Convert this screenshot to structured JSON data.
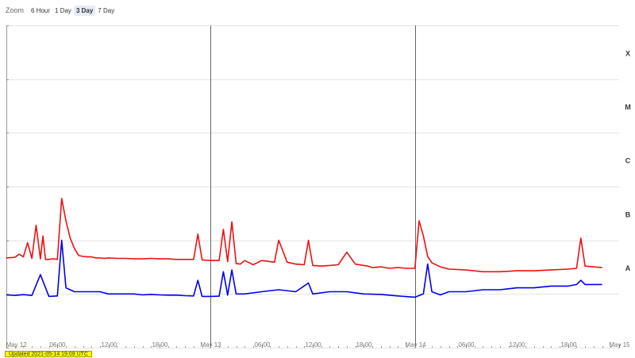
{
  "zoom": {
    "label": "Zoom",
    "buttons": [
      "6 Hour",
      "1 Day",
      "3 Day",
      "7 Day"
    ],
    "active": "3 Day"
  },
  "status_text": "Updated 2021-05-14 19:09 UTC",
  "chart_data": {
    "type": "line",
    "title": "",
    "xlabel": "",
    "ylabel": "",
    "x_ticks": [
      "May 12",
      "06:00",
      "12:00",
      "18:00",
      "May 13",
      "06:00",
      "12:00",
      "18:00",
      "May 14",
      "06:00",
      "12:00",
      "18:00",
      "May 15"
    ],
    "x_range_hours": [
      0,
      72
    ],
    "y_scale": "log",
    "ylim": [
      1e-09,
      0.001
    ],
    "flare_classes": [
      {
        "label": "A",
        "value": 1e-08
      },
      {
        "label": "B",
        "value": 1e-07
      },
      {
        "label": "C",
        "value": 1e-06
      },
      {
        "label": "M",
        "value": 1e-05
      },
      {
        "label": "X",
        "value": 0.0001
      }
    ],
    "grid": true,
    "series": [
      {
        "color": "#ee1111",
        "hours": [
          0,
          1.0,
          1.5,
          2.0,
          2.5,
          3.0,
          3.5,
          4.0,
          4.3,
          4.6,
          5.0,
          5.5,
          6.0,
          6.5,
          7.0,
          7.5,
          8.0,
          8.5,
          9.0,
          9.5,
          10.0,
          10.5,
          11.0,
          11.5,
          12.0,
          13.0,
          14.0,
          15.0,
          16.0,
          17.0,
          18.0,
          19.0,
          20.0,
          21.0,
          22.0,
          22.5,
          23.0,
          24.0,
          25.0,
          25.5,
          26.0,
          26.5,
          27.0,
          27.5,
          28.0,
          29.0,
          30.0,
          31.0,
          31.5,
          32.0,
          33.0,
          34.0,
          35.0,
          35.5,
          36.0,
          37.0,
          38.0,
          39.0,
          40.0,
          41.0,
          42.0,
          42.5,
          43.0,
          44.0,
          45.0,
          46.0,
          47.0,
          48.0,
          48.5,
          49.0,
          49.5,
          50.0,
          51.0,
          52.0,
          54.0,
          56.0,
          58.0,
          60.0,
          62.0,
          64.0,
          66.0,
          67.0,
          67.5,
          68.0,
          69.0,
          70.0
        ],
        "values": [
          4.7e-08,
          4.8e-08,
          5.5e-08,
          4.9e-08,
          9e-08,
          4.6e-08,
          1.9e-07,
          4.5e-08,
          1.2e-07,
          4.4e-08,
          4.4e-08,
          4.5e-08,
          4.4e-08,
          6e-07,
          2.3e-07,
          1.1e-07,
          7e-08,
          5.2e-08,
          5e-08,
          4.9e-08,
          4.9e-08,
          4.7e-08,
          4.7e-08,
          4.6e-08,
          4.7e-08,
          4.6e-08,
          4.6e-08,
          4.5e-08,
          4.5e-08,
          4.6e-08,
          4.5e-08,
          4.5e-08,
          4.4e-08,
          4.4e-08,
          4.4e-08,
          1.3e-07,
          4.3e-08,
          4.2e-08,
          4.2e-08,
          1.6e-07,
          4e-08,
          2.2e-07,
          3.7e-08,
          3.6e-08,
          4.2e-08,
          3.5e-08,
          4.2e-08,
          4e-08,
          3.9e-08,
          1e-07,
          3.9e-08,
          3.6e-08,
          3.5e-08,
          1e-07,
          3.4e-08,
          3.3e-08,
          3.4e-08,
          3.5e-08,
          6e-08,
          3.6e-08,
          3.4e-08,
          3.3e-08,
          3.1e-08,
          3.2e-08,
          3e-08,
          3.1e-08,
          3e-08,
          3e-08,
          2.3e-07,
          1.2e-07,
          5e-08,
          3.8e-08,
          3.2e-08,
          2.9e-08,
          2.8e-08,
          2.6e-08,
          2.6e-08,
          2.7e-08,
          2.7e-08,
          2.8e-08,
          2.9e-08,
          3e-08,
          1.1e-07,
          3.3e-08,
          3.2e-08,
          3.1e-08
        ]
      },
      {
        "color": "#0000ee",
        "hours": [
          0,
          1.0,
          2.0,
          3.0,
          4.0,
          5.0,
          6.0,
          6.5,
          7.0,
          8.0,
          9.0,
          10.0,
          11.0,
          12.0,
          13.0,
          14.0,
          15.0,
          16.0,
          17.0,
          18.0,
          19.0,
          20.0,
          21.0,
          22.0,
          22.5,
          23.0,
          24.0,
          25.0,
          25.5,
          26.0,
          26.5,
          27.0,
          28.0,
          30.0,
          32.0,
          34.0,
          35.5,
          36.0,
          38.0,
          40.0,
          42.0,
          44.0,
          46.0,
          48.0,
          49.0,
          49.5,
          50.0,
          51.0,
          52.0,
          54.0,
          56.0,
          58.0,
          60.0,
          62.0,
          64.0,
          66.0,
          67.0,
          67.5,
          68.0,
          69.0,
          70.0
        ],
        "values": [
          9.6e-09,
          9.4e-09,
          9.7e-09,
          9.4e-09,
          2.3e-08,
          9e-09,
          9.2e-09,
          1e-07,
          1.3e-08,
          1.1e-08,
          1.1e-08,
          1.1e-08,
          1.1e-08,
          1e-08,
          1e-08,
          1e-08,
          1e-08,
          9.6e-09,
          9.8e-09,
          9.6e-09,
          9.5e-09,
          9.5e-09,
          9.3e-09,
          9.2e-09,
          1.8e-08,
          9e-09,
          9e-09,
          9.1e-09,
          2.6e-08,
          9.5e-09,
          2.8e-08,
          1e-08,
          1e-08,
          1.1e-08,
          1.2e-08,
          1.1e-08,
          1.6e-08,
          1e-08,
          1.1e-08,
          1.1e-08,
          1e-08,
          9.8e-09,
          9.2e-09,
          8.7e-09,
          1e-08,
          3.6e-08,
          1.1e-08,
          9.6e-09,
          1.1e-08,
          1.1e-08,
          1.2e-08,
          1.2e-08,
          1.3e-08,
          1.3e-08,
          1.4e-08,
          1.4e-08,
          1.5e-08,
          1.8e-08,
          1.5e-08,
          1.5e-08,
          1.5e-08
        ]
      }
    ]
  }
}
